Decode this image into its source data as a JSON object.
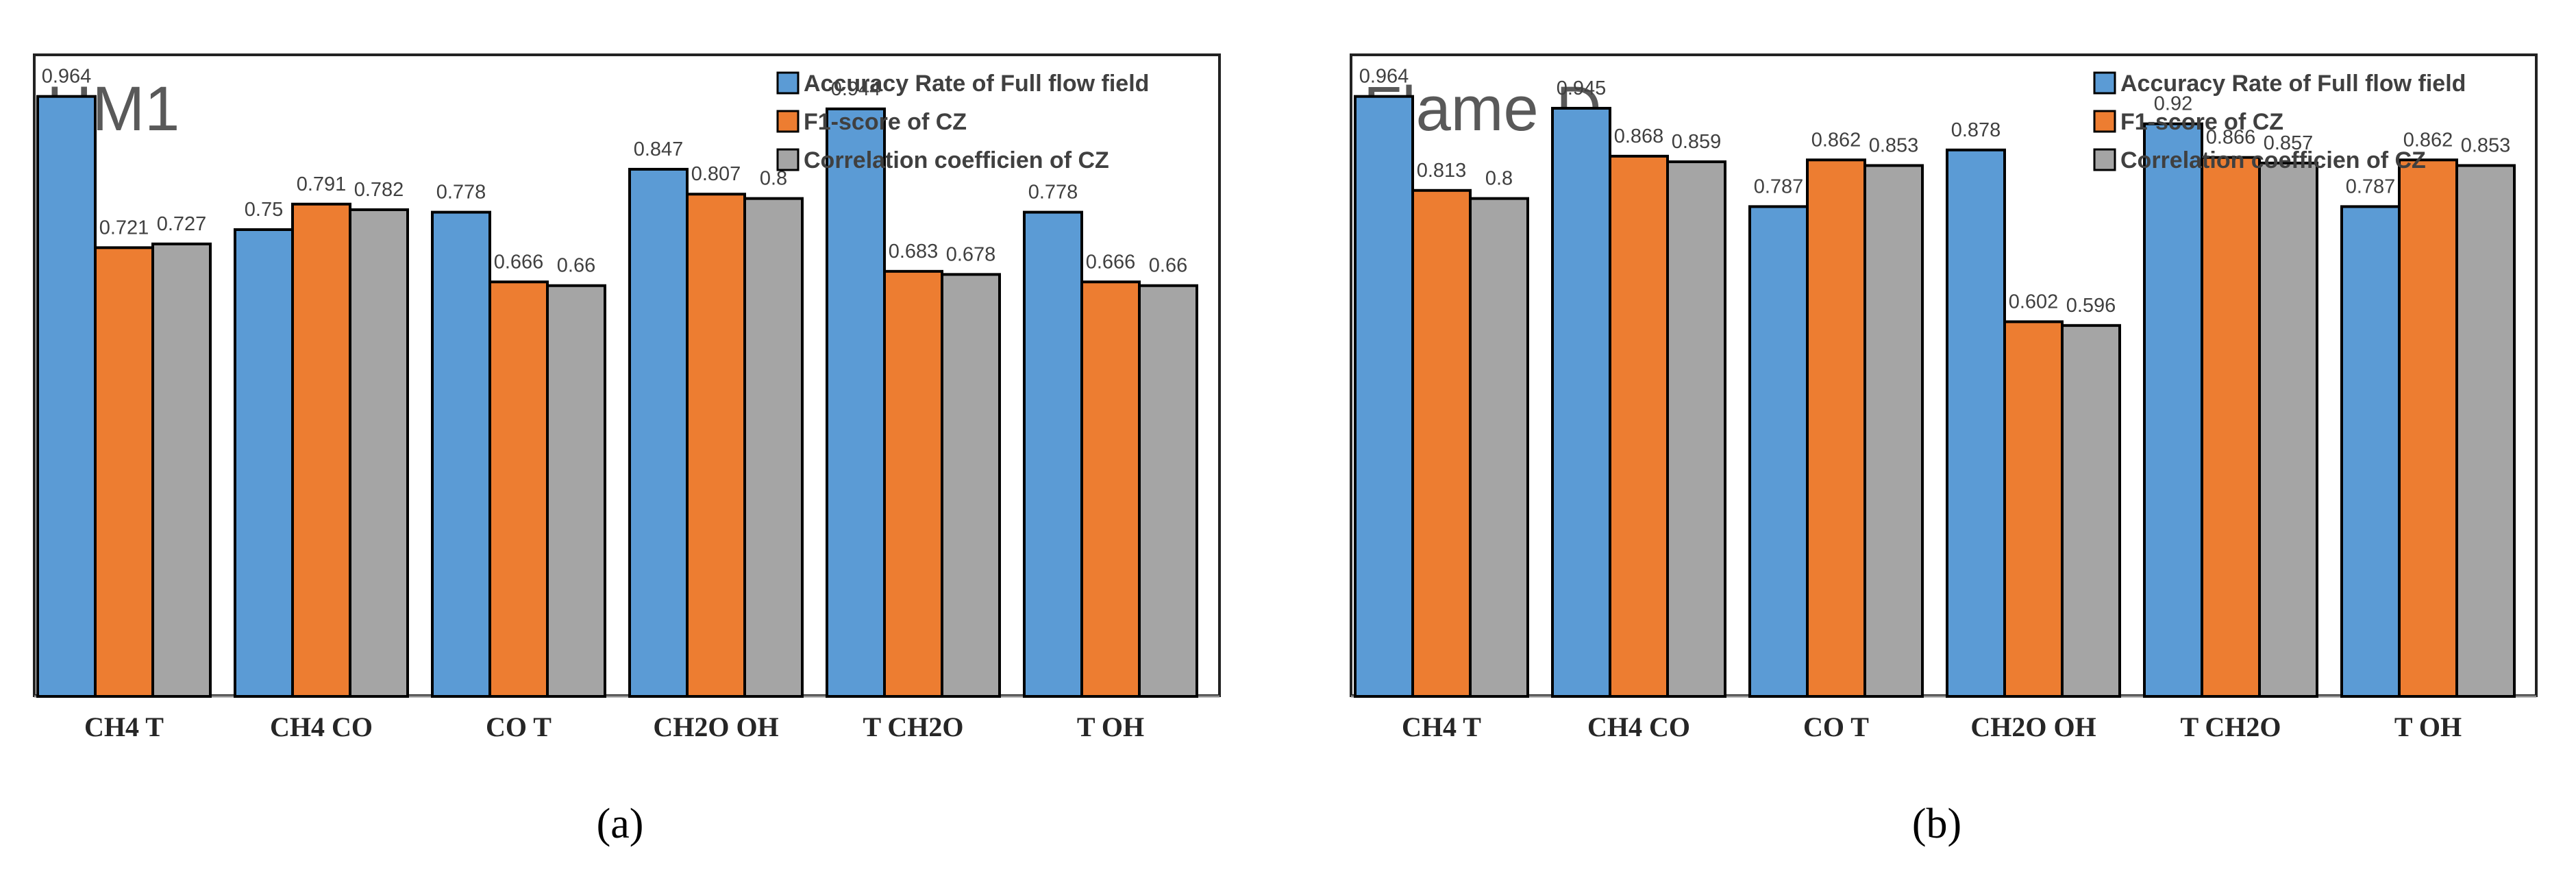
{
  "chart_data": [
    {
      "type": "bar",
      "title": "HM1",
      "panel_label": "(a)",
      "categories": [
        "CH4  T",
        "CH4  CO",
        "CO  T",
        "CH2O  OH",
        "T  CH2O",
        "T OH"
      ],
      "series": [
        {
          "name": "Accuracy Rate of Full flow field",
          "color": "#5B9BD5",
          "values": [
            0.964,
            0.75,
            0.778,
            0.847,
            0.944,
            0.778
          ]
        },
        {
          "name": "F1-score of CZ",
          "color": "#ED7D31",
          "values": [
            0.721,
            0.791,
            0.666,
            0.807,
            0.683,
            0.666
          ]
        },
        {
          "name": "Correlation coefficien of CZ",
          "color": "#A5A5A5",
          "values": [
            0.727,
            0.782,
            0.66,
            0.8,
            0.678,
            0.66
          ]
        }
      ],
      "ylim": [
        0,
        1.0
      ],
      "legend": "top-right",
      "grid": false
    },
    {
      "type": "bar",
      "title": "Flame D",
      "panel_label": "(b)",
      "categories": [
        "CH4  T",
        "CH4  CO",
        "CO  T",
        "CH2O  OH",
        "T  CH2O",
        "T OH"
      ],
      "series": [
        {
          "name": "Accuracy Rate of Full flow field",
          "color": "#5B9BD5",
          "values": [
            0.964,
            0.945,
            0.787,
            0.878,
            0.92,
            0.787
          ]
        },
        {
          "name": "F1-score of CZ",
          "color": "#ED7D31",
          "values": [
            0.813,
            0.868,
            0.862,
            0.602,
            0.866,
            0.862
          ]
        },
        {
          "name": "Correlation coefficien of CZ",
          "color": "#A5A5A5",
          "values": [
            0.8,
            0.859,
            0.853,
            0.596,
            0.857,
            0.853
          ]
        }
      ],
      "ylim": [
        0,
        1.0
      ],
      "legend": "top-right",
      "grid": false
    }
  ]
}
